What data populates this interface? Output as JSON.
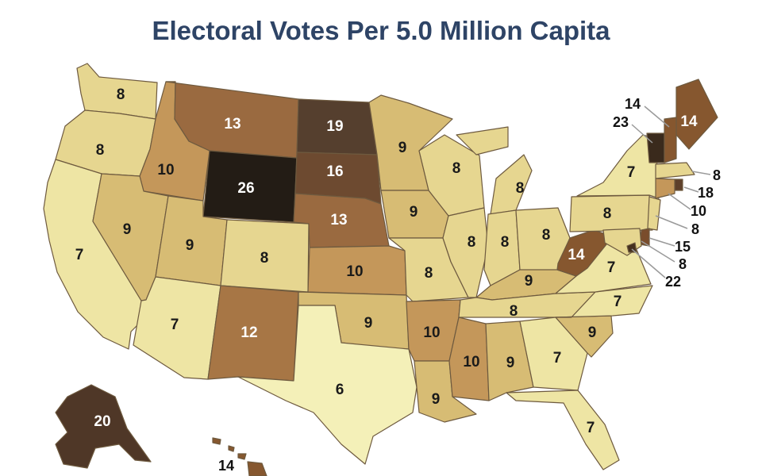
{
  "title": "Electoral Votes Per 5.0 Million Capita",
  "palette": {
    "6": "#f4f0b8",
    "7": "#eee5a4",
    "8": "#e6d690",
    "9": "#d7bc74",
    "10": "#c4975a",
    "12": "#a77645",
    "13": "#9a6a40",
    "14": "#86572f",
    "15": "#7a4d2c",
    "16": "#6d4a30",
    "18": "#5e3f2a",
    "19": "#553f2e",
    "20": "#4f3727",
    "22": "#45301f",
    "23": "#3a2a1c",
    "26": "#231c15"
  },
  "border_color": "#6e5a3f",
  "states": [
    {
      "abbr": "WA",
      "value": 8
    },
    {
      "abbr": "OR",
      "value": 8
    },
    {
      "abbr": "CA",
      "value": 7
    },
    {
      "abbr": "ID",
      "value": 10
    },
    {
      "abbr": "NV",
      "value": 9
    },
    {
      "abbr": "MT",
      "value": 13
    },
    {
      "abbr": "WY",
      "value": 26
    },
    {
      "abbr": "UT",
      "value": 9
    },
    {
      "abbr": "AZ",
      "value": 7
    },
    {
      "abbr": "CO",
      "value": 8
    },
    {
      "abbr": "NM",
      "value": 12
    },
    {
      "abbr": "ND",
      "value": 19
    },
    {
      "abbr": "SD",
      "value": 16
    },
    {
      "abbr": "NE",
      "value": 13
    },
    {
      "abbr": "KS",
      "value": 10
    },
    {
      "abbr": "OK",
      "value": 9
    },
    {
      "abbr": "TX",
      "value": 6
    },
    {
      "abbr": "MN",
      "value": 9
    },
    {
      "abbr": "IA",
      "value": 9
    },
    {
      "abbr": "MO",
      "value": 8
    },
    {
      "abbr": "AR",
      "value": 10
    },
    {
      "abbr": "LA",
      "value": 9
    },
    {
      "abbr": "WI",
      "value": 8
    },
    {
      "abbr": "IL",
      "value": 8
    },
    {
      "abbr": "MI",
      "value": 8
    },
    {
      "abbr": "IN",
      "value": 8
    },
    {
      "abbr": "OH",
      "value": 8
    },
    {
      "abbr": "KY",
      "value": 9
    },
    {
      "abbr": "TN",
      "value": 8
    },
    {
      "abbr": "MS",
      "value": 10
    },
    {
      "abbr": "AL",
      "value": 9
    },
    {
      "abbr": "GA",
      "value": 7
    },
    {
      "abbr": "FL",
      "value": 7
    },
    {
      "abbr": "SC",
      "value": 9
    },
    {
      "abbr": "NC",
      "value": 7
    },
    {
      "abbr": "VA",
      "value": 7
    },
    {
      "abbr": "WV",
      "value": 14
    },
    {
      "abbr": "PA",
      "value": 8
    },
    {
      "abbr": "NY",
      "value": 7
    },
    {
      "abbr": "ME",
      "value": 14
    },
    {
      "abbr": "VT",
      "value": 23
    },
    {
      "abbr": "NH",
      "value": 14
    },
    {
      "abbr": "MA",
      "value": 8
    },
    {
      "abbr": "RI",
      "value": 18
    },
    {
      "abbr": "CT",
      "value": 10
    },
    {
      "abbr": "NJ",
      "value": 8
    },
    {
      "abbr": "DE",
      "value": 15
    },
    {
      "abbr": "MD",
      "value": 8
    },
    {
      "abbr": "DC",
      "value": 22
    },
    {
      "abbr": "AK",
      "value": 20
    },
    {
      "abbr": "HI",
      "value": 14
    }
  ]
}
